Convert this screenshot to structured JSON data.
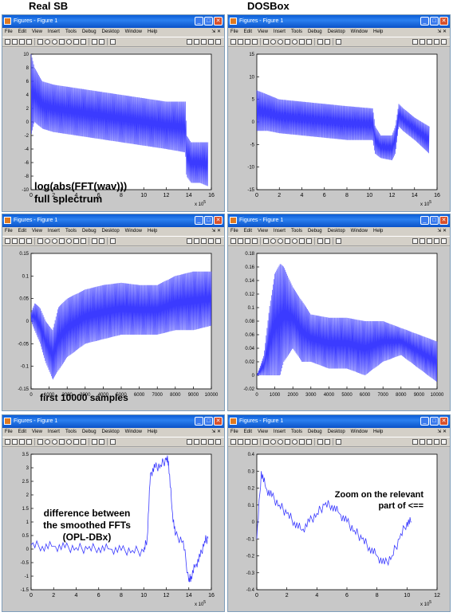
{
  "headers": {
    "left": "Real SB",
    "right": "DOSBox"
  },
  "window": {
    "title": "Figures - Figure 1",
    "menus": [
      "File",
      "Edit",
      "View",
      "Insert",
      "Tools",
      "Debug",
      "Desktop",
      "Window",
      "Help"
    ],
    "dock": "⇲ ✕",
    "title_color": "#0a5cd6"
  },
  "annotations": {
    "p0": [
      "log(abs(FFT(wav)))",
      "full splectrum"
    ],
    "p2": [
      "first 10000 samples"
    ],
    "p4": [
      "difference between",
      "the smoothed FFTs",
      "(OPL-DBx)"
    ],
    "p5": [
      "Zoom on the relevant",
      "part of <=="
    ]
  },
  "chart_data": [
    {
      "type": "line",
      "title": "",
      "xlabel": "",
      "ylabel": "",
      "x_multiplier_label": "x 10",
      "x_multiplier_exp": "5",
      "xlim": [
        0,
        16
      ],
      "ylim": [
        -10,
        10
      ],
      "xticks": [
        "0",
        "2",
        "4",
        "6",
        "8",
        "10",
        "12",
        "14",
        "16"
      ],
      "yticks": [
        "-10",
        "-8",
        "-6",
        "-4",
        "-2",
        "0",
        "2",
        "4",
        "6",
        "8",
        "10"
      ],
      "color": "#3b3bff",
      "series": [
        {
          "x": [
            0,
            0.3,
            1,
            2,
            4,
            6,
            8,
            10,
            12,
            13.7,
            13.8,
            14.2,
            15,
            15.7
          ],
          "y_low": [
            -2,
            0,
            -1,
            -1.5,
            -2,
            -2.5,
            -3,
            -3.5,
            -4,
            -4.5,
            -8,
            -9,
            -9,
            -9.5
          ],
          "y_high": [
            10,
            8,
            6,
            5.5,
            5,
            4.5,
            4,
            3.5,
            3,
            3,
            -2,
            -3,
            -3,
            -3
          ]
        }
      ]
    },
    {
      "type": "line",
      "title": "",
      "xlabel": "",
      "ylabel": "",
      "x_multiplier_label": "x 10",
      "x_multiplier_exp": "5",
      "xlim": [
        0,
        16
      ],
      "ylim": [
        -15,
        15
      ],
      "xticks": [
        "0",
        "2",
        "4",
        "6",
        "8",
        "10",
        "12",
        "14",
        "16"
      ],
      "yticks": [
        "-15",
        "-10",
        "-5",
        "0",
        "5",
        "10",
        "15"
      ],
      "color": "#3b3bff",
      "series": [
        {
          "x": [
            0,
            1,
            2,
            4,
            6,
            8,
            10.3,
            10.5,
            11,
            12,
            12.3,
            12.6,
            13,
            14,
            15.3
          ],
          "y_low": [
            -2,
            -2,
            -2.5,
            -3,
            -3.5,
            -4,
            -4,
            -7,
            -8,
            -8.5,
            -7,
            -1,
            -2,
            -4,
            -7
          ],
          "y_high": [
            7,
            6,
            5,
            4.5,
            4,
            3.5,
            3,
            -1,
            -3,
            -3,
            -1,
            4,
            3,
            1,
            -1
          ]
        }
      ]
    },
    {
      "type": "line",
      "title": "",
      "xlabel": "",
      "ylabel": "",
      "xlim": [
        0,
        10000
      ],
      "ylim": [
        -0.15,
        0.15
      ],
      "xticks": [
        "0",
        "1000",
        "2000",
        "3000",
        "4000",
        "5000",
        "6000",
        "7000",
        "8000",
        "9000",
        "10000"
      ],
      "yticks": [
        "-0.15",
        "-0.1",
        "-0.05",
        "0",
        "0.05",
        "0.1",
        "0.15"
      ],
      "color": "#3b3bff",
      "series": [
        {
          "x": [
            0,
            200,
            500,
            800,
            1200,
            1500,
            2000,
            3000,
            4000,
            5000,
            6000,
            7000,
            8000,
            9000,
            10000
          ],
          "y_low": [
            0,
            -0.02,
            -0.05,
            -0.09,
            -0.13,
            -0.11,
            -0.08,
            -0.05,
            -0.04,
            -0.03,
            -0.03,
            -0.03,
            -0.02,
            -0.02,
            -0.01
          ],
          "y_high": [
            0.02,
            0.04,
            0.03,
            0.0,
            -0.02,
            0.03,
            0.05,
            0.07,
            0.08,
            0.085,
            0.08,
            0.08,
            0.1,
            0.11,
            0.11
          ]
        }
      ]
    },
    {
      "type": "line",
      "title": "",
      "xlabel": "",
      "ylabel": "",
      "xlim": [
        0,
        10000
      ],
      "ylim": [
        -0.02,
        0.18
      ],
      "xticks": [
        "0",
        "1000",
        "2000",
        "3000",
        "4000",
        "5000",
        "6000",
        "7000",
        "8000",
        "9000",
        "10000"
      ],
      "yticks": [
        "-0.02",
        "0",
        "0.02",
        "0.04",
        "0.06",
        "0.08",
        "0.1",
        "0.12",
        "0.14",
        "0.16",
        "0.18"
      ],
      "color": "#3b3bff",
      "series": [
        {
          "x": [
            0,
            400,
            700,
            1000,
            1300,
            1500,
            2000,
            2500,
            3000,
            4000,
            5000,
            6000,
            7000,
            8000,
            9000,
            10000
          ],
          "y_low": [
            0,
            0,
            0,
            0,
            0,
            0.02,
            0.04,
            0.02,
            0.02,
            0.01,
            0.01,
            0,
            0.02,
            0.03,
            0.01,
            -0.01
          ],
          "y_high": [
            0,
            0.03,
            0.1,
            0.15,
            0.165,
            0.16,
            0.13,
            0.11,
            0.09,
            0.085,
            0.085,
            0.08,
            0.08,
            0.07,
            0.06,
            0.05
          ]
        }
      ]
    },
    {
      "type": "line",
      "title": "",
      "xlabel": "",
      "ylabel": "",
      "x_multiplier_label": "x 10",
      "x_multiplier_exp": "5",
      "xlim": [
        0,
        16
      ],
      "ylim": [
        -1.5,
        3.5
      ],
      "xticks": [
        "0",
        "2",
        "4",
        "6",
        "8",
        "10",
        "12",
        "14",
        "16"
      ],
      "yticks": [
        "-1.5",
        "-1",
        "-0.5",
        "0",
        "0.5",
        "1",
        "1.5",
        "2",
        "2.5",
        "3",
        "3.5"
      ],
      "color": "#3b3bff",
      "series": [
        {
          "x": [
            0,
            1,
            2,
            3,
            4,
            5,
            6,
            7,
            8,
            9,
            10,
            10.3,
            10.6,
            11,
            11.5,
            12,
            12.2,
            12.5,
            12.8,
            13.5,
            14,
            14.2,
            14.6,
            15,
            15.4,
            15.7
          ],
          "y": [
            0.15,
            0.1,
            0.1,
            0.05,
            0.05,
            0.0,
            0.05,
            0.0,
            -0.05,
            -0.05,
            -0.1,
            0.4,
            2.8,
            3.0,
            3.1,
            3.3,
            3.25,
            1.5,
            0.5,
            0.3,
            -1.2,
            -1.0,
            -0.6,
            -0.3,
            0.3,
            0.4
          ]
        }
      ]
    },
    {
      "type": "line",
      "title": "",
      "xlabel": "",
      "ylabel": "",
      "x_multiplier_label": "x 10",
      "x_multiplier_exp": "5",
      "xlim": [
        0,
        12
      ],
      "ylim": [
        -0.4,
        0.4
      ],
      "xticks": [
        "0",
        "2",
        "4",
        "6",
        "8",
        "10",
        "12"
      ],
      "yticks": [
        "-0.4",
        "-0.3",
        "-0.2",
        "-0.1",
        "0",
        "0.1",
        "0.2",
        "0.3",
        "0.4"
      ],
      "color": "#3b3bff",
      "series": [
        {
          "x": [
            0,
            0.3,
            0.6,
            1,
            1.5,
            2,
            2.5,
            3,
            3.5,
            4,
            4.5,
            5,
            5.5,
            6,
            6.5,
            7,
            7.5,
            8,
            8.5,
            9,
            9.5,
            10,
            10.3
          ],
          "y": [
            -0.1,
            0.3,
            0.2,
            0.15,
            0.1,
            0.05,
            0.0,
            -0.05,
            0.0,
            0.05,
            0.1,
            0.1,
            0.05,
            0.0,
            -0.05,
            -0.1,
            -0.15,
            -0.2,
            -0.25,
            -0.2,
            -0.1,
            0.0,
            0.0
          ]
        }
      ]
    }
  ]
}
